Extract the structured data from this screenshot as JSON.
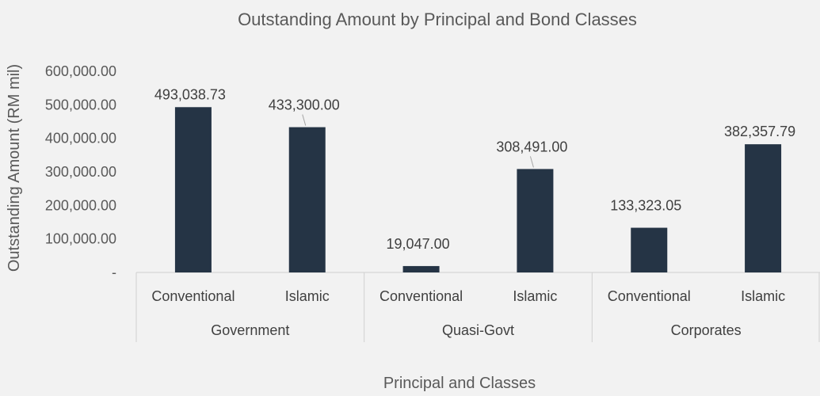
{
  "chart_data": {
    "type": "bar",
    "title": "Outstanding Amount by Principal and Bond Classes",
    "xlabel": "Principal and Classes",
    "ylabel": "Outstanding Amount (RM mil)",
    "ylim": [
      0,
      600000
    ],
    "y_ticks": [
      {
        "value": 0,
        "label": "-"
      },
      {
        "value": 100000,
        "label": "100,000.00"
      },
      {
        "value": 200000,
        "label": "200,000.00"
      },
      {
        "value": 300000,
        "label": "300,000.00"
      },
      {
        "value": 400000,
        "label": "400,000.00"
      },
      {
        "value": 500000,
        "label": "500,000.00"
      },
      {
        "value": 600000,
        "label": "600,000.00"
      }
    ],
    "groups": [
      {
        "name": "Government",
        "categories": [
          "Conventional",
          "Islamic"
        ]
      },
      {
        "name": "Quasi-Govt",
        "categories": [
          "Conventional",
          "Islamic"
        ]
      },
      {
        "name": "Corporates",
        "categories": [
          "Conventional",
          "Islamic"
        ]
      }
    ],
    "values": [
      493038.73,
      433300.0,
      19047.0,
      308491.0,
      133323.05,
      382357.79
    ],
    "data_labels": [
      "493,038.73",
      "433,300.00",
      "19,047.00",
      "308,491.00",
      "133,323.05",
      "382,357.79"
    ],
    "bar_color": "#253445",
    "grid": false,
    "legend": "none"
  }
}
